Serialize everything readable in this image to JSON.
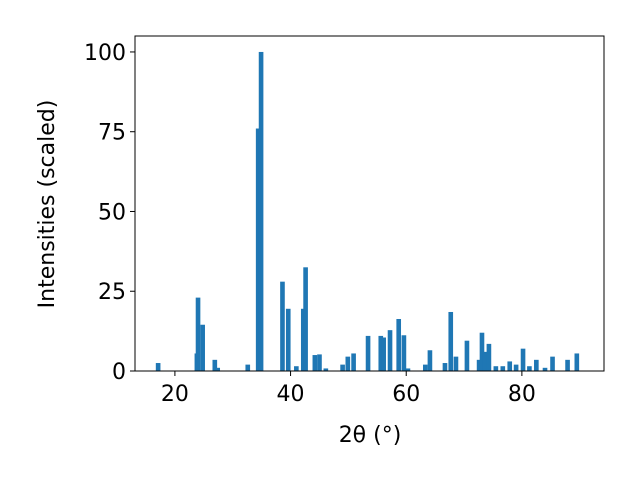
{
  "chart_data": {
    "type": "bar",
    "x_label": "2θ (°)",
    "y_label": "Intensities (scaled)",
    "x": [
      17.1,
      23.8,
      24.0,
      24.8,
      26.9,
      27.4,
      32.6,
      34.4,
      34.9,
      38.6,
      39.6,
      41.0,
      42.2,
      42.6,
      44.2,
      45.0,
      46.1,
      49.0,
      49.9,
      50.9,
      53.4,
      55.6,
      56.1,
      57.2,
      58.7,
      59.6,
      60.3,
      63.3,
      64.1,
      66.7,
      67.7,
      68.6,
      70.5,
      72.6,
      73.1,
      73.6,
      74.3,
      75.5,
      76.7,
      77.9,
      79.0,
      80.2,
      81.3,
      82.5,
      84.0,
      85.3,
      87.9,
      89.5
    ],
    "values": [
      2.5,
      5.5,
      23,
      14.5,
      3.5,
      1,
      2,
      76,
      100,
      28,
      19.5,
      1.5,
      19.5,
      32.5,
      5,
      5.2,
      0.8,
      2,
      4.5,
      5.5,
      11,
      11,
      10.5,
      12.8,
      16.3,
      11.2,
      0.8,
      2,
      6.5,
      2.5,
      18.5,
      4.5,
      9.5,
      3.5,
      12,
      6,
      8.5,
      1.5,
      1.5,
      3,
      2,
      7,
      1.5,
      3.5,
      1,
      4.5,
      3.5,
      5.5
    ],
    "color": "#1f77b4",
    "xlim": [
      13.1,
      94.2
    ],
    "ylim": [
      0,
      105
    ],
    "xticks": [
      20,
      40,
      60,
      80
    ],
    "yticks": [
      0,
      25,
      50,
      75,
      100
    ]
  }
}
